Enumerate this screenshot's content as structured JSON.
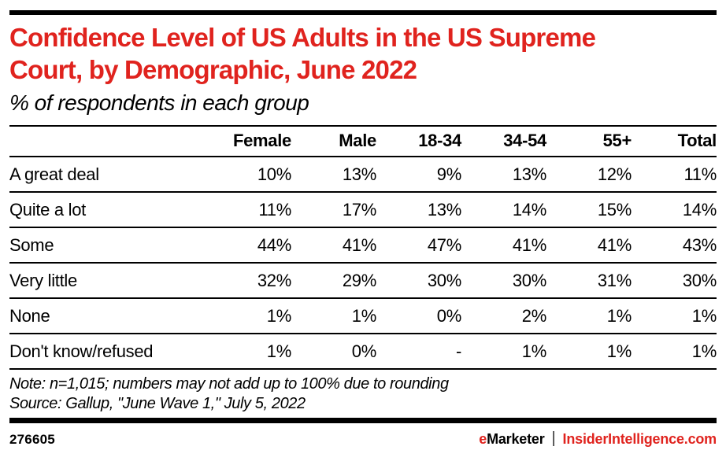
{
  "colors": {
    "accent_red": "#e0231e",
    "bar_black": "#000000"
  },
  "header": {
    "title_line1": "Confidence Level of US Adults in the US Supreme",
    "title_line2": "Court, by Demographic, June 2022",
    "subtitle": "% of respondents in each group"
  },
  "chart_data": {
    "type": "table",
    "title": "Confidence Level of US Adults in the US Supreme Court, by Demographic, June 2022",
    "subtitle": "% of respondents in each group",
    "categories": [
      "Female",
      "Male",
      "18-34",
      "34-54",
      "55+",
      "Total"
    ],
    "series": [
      {
        "name": "A great deal",
        "values": [
          "10%",
          "13%",
          "9%",
          "13%",
          "12%",
          "11%"
        ]
      },
      {
        "name": "Quite a lot",
        "values": [
          "11%",
          "17%",
          "13%",
          "14%",
          "15%",
          "14%"
        ]
      },
      {
        "name": "Some",
        "values": [
          "44%",
          "41%",
          "47%",
          "41%",
          "41%",
          "43%"
        ]
      },
      {
        "name": "Very little",
        "values": [
          "32%",
          "29%",
          "30%",
          "30%",
          "31%",
          "30%"
        ]
      },
      {
        "name": "None",
        "values": [
          "1%",
          "1%",
          "0%",
          "2%",
          "1%",
          "1%"
        ]
      },
      {
        "name": "Don't know/refused",
        "values": [
          "1%",
          "0%",
          "-",
          "1%",
          "1%",
          "1%"
        ]
      }
    ],
    "note": "Note: n=1,015; numbers may not add up to 100% due to rounding",
    "source": "Source: Gallup, \"June Wave 1,\" July 5, 2022"
  },
  "footer": {
    "chart_id": "276605",
    "brand_e": "e",
    "brand_rest": "Marketer",
    "separator": "|",
    "brand_site": "InsiderIntelligence.com"
  }
}
